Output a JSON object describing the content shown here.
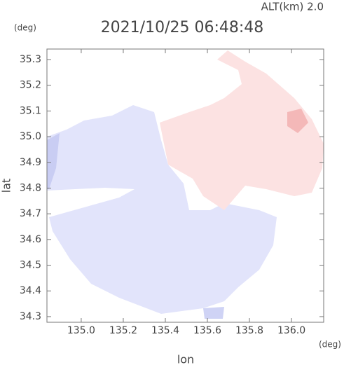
{
  "chart_data": {
    "type": "map",
    "title": "2021/10/25 06:48:48",
    "annotation": "ALT(km) 2.0",
    "xlabel": "lon",
    "ylabel": "lat",
    "xunit": "(deg)",
    "yunit": "(deg)",
    "xlim": [
      134.837,
      136.153
    ],
    "ylim": [
      34.278,
      35.341
    ],
    "xticks": [
      {
        "value": 135,
        "label": "135.0"
      },
      135.2,
      135.4,
      135.6,
      135.8,
      {
        "value": 136,
        "label": "136.0"
      }
    ],
    "yticks": [
      34.3,
      34.4,
      34.5,
      34.6,
      34.7,
      34.8,
      34.9,
      {
        "value": 35,
        "label": "35.0"
      },
      35.1,
      35.2,
      35.3
    ]
  }
}
